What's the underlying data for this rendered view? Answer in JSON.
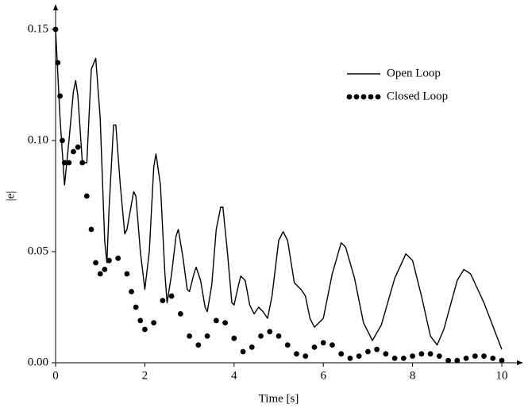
{
  "chart_data": {
    "type": "line",
    "xlabel": "Time [s]",
    "ylabel": "|e|",
    "xlim": [
      0,
      10.4
    ],
    "ylim": [
      0,
      0.16
    ],
    "xticks": [
      0,
      2,
      4,
      6,
      8,
      10
    ],
    "yticks": [
      {
        "value": 0,
        "label": "0.00"
      },
      {
        "value": 0.05,
        "label": "0.05"
      },
      {
        "value": 0.1,
        "label": "0.10"
      },
      {
        "value": 0.15,
        "label": "0.15"
      }
    ],
    "legend": "upper right",
    "series": [
      {
        "name": "Open Loop",
        "color": "#000000",
        "style": "solid",
        "x": [
          0,
          0.1,
          0.2,
          0.3,
          0.4,
          0.45,
          0.5,
          0.6,
          0.7,
          0.8,
          0.9,
          1.0,
          1.1,
          1.15,
          1.2,
          1.3,
          1.35,
          1.45,
          1.55,
          1.6,
          1.75,
          1.8,
          1.9,
          2.0,
          2.1,
          2.2,
          2.25,
          2.35,
          2.45,
          2.5,
          2.6,
          2.7,
          2.75,
          2.85,
          2.95,
          3.0,
          3.1,
          3.15,
          3.25,
          3.35,
          3.4,
          3.5,
          3.6,
          3.7,
          3.75,
          3.85,
          3.95,
          4.0,
          4.1,
          4.15,
          4.25,
          4.35,
          4.45,
          4.55,
          4.65,
          4.75,
          4.85,
          5.0,
          5.1,
          5.2,
          5.35,
          5.5,
          5.6,
          5.7,
          5.8,
          6.0,
          6.2,
          6.4,
          6.5,
          6.7,
          6.9,
          7.1,
          7.3,
          7.6,
          7.85,
          8.0,
          8.2,
          8.4,
          8.55,
          8.7,
          9.0,
          9.15,
          9.3,
          9.6,
          10.0
        ],
        "values": [
          0.15,
          0.11,
          0.08,
          0.1,
          0.122,
          0.127,
          0.12,
          0.09,
          0.09,
          0.132,
          0.137,
          0.11,
          0.055,
          0.045,
          0.07,
          0.107,
          0.107,
          0.08,
          0.058,
          0.06,
          0.077,
          0.075,
          0.05,
          0.033,
          0.05,
          0.088,
          0.094,
          0.08,
          0.04,
          0.027,
          0.04,
          0.057,
          0.06,
          0.048,
          0.033,
          0.032,
          0.04,
          0.043,
          0.037,
          0.025,
          0.023,
          0.035,
          0.06,
          0.07,
          0.07,
          0.05,
          0.027,
          0.026,
          0.035,
          0.039,
          0.037,
          0.026,
          0.022,
          0.025,
          0.023,
          0.02,
          0.03,
          0.055,
          0.059,
          0.055,
          0.036,
          0.033,
          0.03,
          0.02,
          0.016,
          0.02,
          0.04,
          0.054,
          0.052,
          0.038,
          0.018,
          0.01,
          0.017,
          0.038,
          0.049,
          0.046,
          0.03,
          0.012,
          0.008,
          0.015,
          0.037,
          0.042,
          0.04,
          0.027,
          0.006
        ]
      },
      {
        "name": "Closed Loop",
        "color": "#000000",
        "style": "dotted",
        "x": [
          0,
          0.05,
          0.1,
          0.15,
          0.2,
          0.3,
          0.4,
          0.5,
          0.6,
          0.7,
          0.8,
          0.9,
          1.0,
          1.1,
          1.2,
          1.4,
          1.6,
          1.7,
          1.8,
          1.9,
          2.0,
          2.2,
          2.4,
          2.6,
          2.8,
          3.0,
          3.2,
          3.4,
          3.6,
          3.8,
          4.0,
          4.2,
          4.4,
          4.6,
          4.8,
          5.0,
          5.2,
          5.4,
          5.6,
          5.8,
          6.0,
          6.2,
          6.4,
          6.6,
          6.8,
          7.0,
          7.2,
          7.4,
          7.6,
          7.8,
          8.0,
          8.2,
          8.4,
          8.6,
          8.8,
          9.0,
          9.2,
          9.4,
          9.6,
          9.8,
          10.0
        ],
        "values": [
          0.15,
          0.135,
          0.12,
          0.1,
          0.09,
          0.09,
          0.095,
          0.097,
          0.09,
          0.075,
          0.06,
          0.045,
          0.04,
          0.042,
          0.046,
          0.047,
          0.04,
          0.032,
          0.025,
          0.019,
          0.015,
          0.018,
          0.028,
          0.03,
          0.022,
          0.012,
          0.008,
          0.012,
          0.019,
          0.018,
          0.011,
          0.005,
          0.007,
          0.012,
          0.014,
          0.012,
          0.008,
          0.004,
          0.003,
          0.007,
          0.009,
          0.008,
          0.004,
          0.002,
          0.003,
          0.005,
          0.006,
          0.004,
          0.002,
          0.002,
          0.003,
          0.004,
          0.004,
          0.003,
          0.001,
          0.001,
          0.002,
          0.003,
          0.003,
          0.002,
          0.001
        ]
      }
    ]
  }
}
